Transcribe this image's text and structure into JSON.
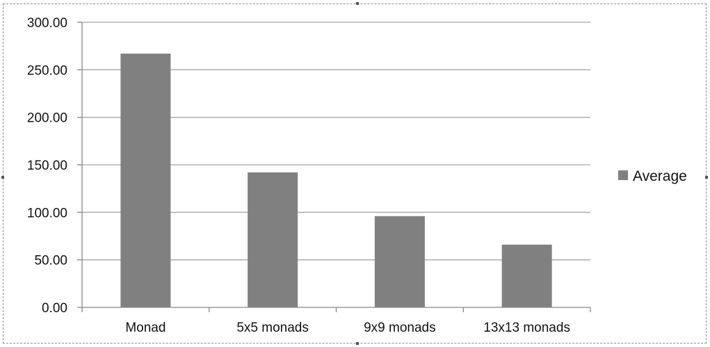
{
  "colors": {
    "bar": "#808080",
    "gridline": "#a6a6a6",
    "axis": "#868686",
    "text": "#111111",
    "frame": "#8a8a8a"
  },
  "chart_data": {
    "type": "bar",
    "title": "",
    "xlabel": "",
    "ylabel": "",
    "categories": [
      "Monad",
      "5x5 monads",
      "9x9 monads",
      "13x13 monads"
    ],
    "series": [
      {
        "name": "Average",
        "values": [
          267,
          142,
          96,
          66
        ]
      }
    ],
    "ylim": [
      0,
      300
    ],
    "yticks": [
      0,
      50,
      100,
      150,
      200,
      250,
      300
    ],
    "ytick_labels": [
      "0.00",
      "50.00",
      "100.00",
      "150.00",
      "200.00",
      "250.00",
      "300.00"
    ],
    "grid": true,
    "legend_position": "right"
  }
}
